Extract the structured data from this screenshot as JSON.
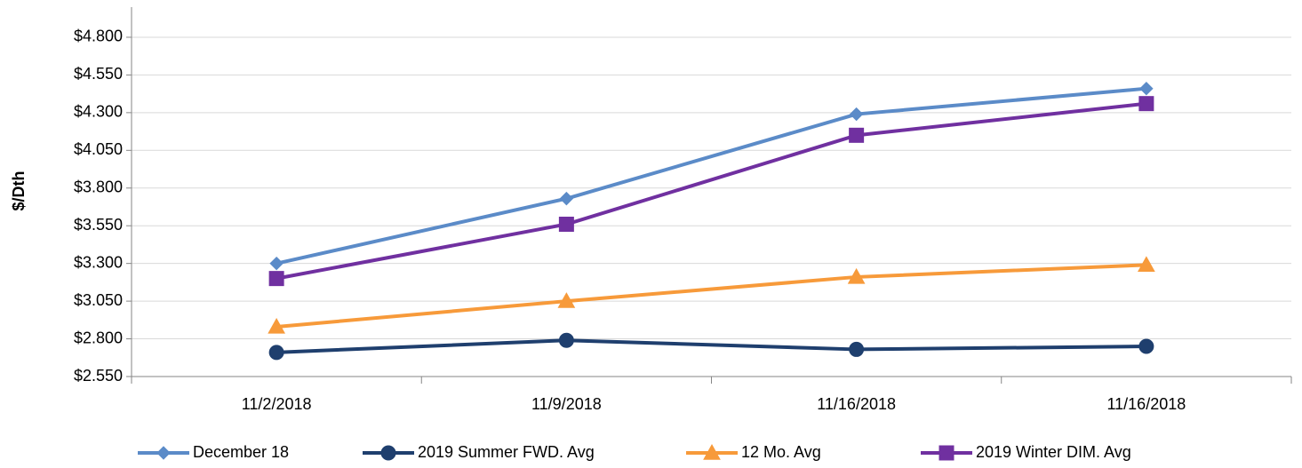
{
  "chart_data": {
    "type": "line",
    "y_label": "$/Dth",
    "categories": [
      "11/2/2018",
      "11/9/2018",
      "11/16/2018",
      "11/16/2018"
    ],
    "series": [
      {
        "name": "December 18",
        "color": "#5b8bc8",
        "marker": "diamond",
        "values": [
          3.3,
          3.73,
          4.29,
          4.46
        ]
      },
      {
        "name": "2019 Summer FWD. Avg",
        "color": "#1f3f6e",
        "marker": "circle",
        "values": [
          2.71,
          2.79,
          2.73,
          2.75
        ]
      },
      {
        "name": "12 Mo. Avg",
        "color": "#f79a3a",
        "marker": "triangle",
        "values": [
          2.88,
          3.05,
          3.21,
          3.29
        ]
      },
      {
        "name": "2019 Winter DIM. Avg",
        "color": "#7030a0",
        "marker": "square",
        "values": [
          3.2,
          3.56,
          4.15,
          4.36
        ]
      }
    ],
    "ylim": [
      2.55,
      5.0
    ],
    "yticks": [
      {
        "value": 2.55,
        "label": "$2.550"
      },
      {
        "value": 2.8,
        "label": "$2.800"
      },
      {
        "value": 3.05,
        "label": "$3.050"
      },
      {
        "value": 3.3,
        "label": "$3.300"
      },
      {
        "value": 3.55,
        "label": "$3.550"
      },
      {
        "value": 3.8,
        "label": "$3.800"
      },
      {
        "value": 4.05,
        "label": "$4.050"
      },
      {
        "value": 4.3,
        "label": "$4.300"
      },
      {
        "value": 4.55,
        "label": "$4.550"
      },
      {
        "value": 4.8,
        "label": "$4.800"
      }
    ],
    "grid": true,
    "legend": "bottom"
  }
}
